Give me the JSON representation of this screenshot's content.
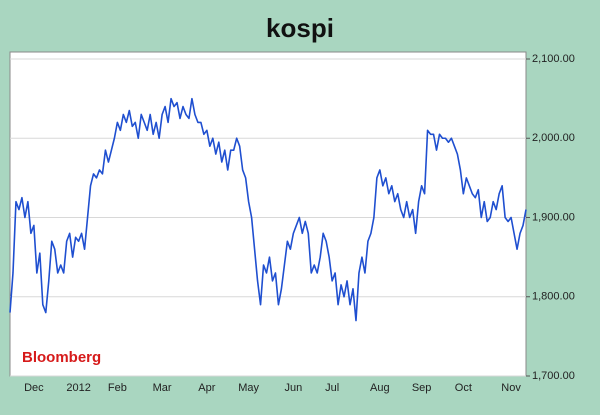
{
  "chart_data": {
    "type": "line",
    "title": "kospi",
    "source": "Bloomberg",
    "color": "#1f4fd0",
    "grid": true,
    "y_axis_side": "right",
    "xlim": [
      0,
      173
    ],
    "xticks": [
      {
        "value": 8,
        "label": "Dec"
      },
      {
        "value": 23,
        "label": "2012"
      },
      {
        "value": 36,
        "label": "Feb"
      },
      {
        "value": 51,
        "label": "Mar"
      },
      {
        "value": 66,
        "label": "Apr"
      },
      {
        "value": 80,
        "label": "May"
      },
      {
        "value": 95,
        "label": "Jun"
      },
      {
        "value": 108,
        "label": "Jul"
      },
      {
        "value": 124,
        "label": "Aug"
      },
      {
        "value": 138,
        "label": "Sep"
      },
      {
        "value": 152,
        "label": "Oct"
      },
      {
        "value": 168,
        "label": "Nov"
      }
    ],
    "ylim": [
      1700,
      2100
    ],
    "yticks": [
      {
        "value": 1700,
        "label": "1,700.00"
      },
      {
        "value": 1800,
        "label": "1,800.00"
      },
      {
        "value": 1900,
        "label": "1,900.00"
      },
      {
        "value": 2000,
        "label": "2,000.00"
      },
      {
        "value": 2100,
        "label": "2,100.00"
      }
    ],
    "values": [
      1780,
      1830,
      1920,
      1910,
      1925,
      1900,
      1920,
      1880,
      1890,
      1830,
      1855,
      1790,
      1780,
      1820,
      1870,
      1860,
      1830,
      1840,
      1830,
      1870,
      1880,
      1850,
      1875,
      1870,
      1880,
      1860,
      1900,
      1940,
      1955,
      1950,
      1960,
      1955,
      1985,
      1970,
      1985,
      2000,
      2020,
      2010,
      2030,
      2020,
      2035,
      2015,
      2020,
      2000,
      2030,
      2020,
      2010,
      2030,
      2005,
      2020,
      2000,
      2030,
      2040,
      2020,
      2050,
      2040,
      2045,
      2025,
      2040,
      2030,
      2025,
      2050,
      2030,
      2020,
      2020,
      2005,
      2010,
      1990,
      2000,
      1980,
      1995,
      1970,
      1985,
      1960,
      1985,
      1985,
      2000,
      1990,
      1960,
      1950,
      1920,
      1900,
      1860,
      1820,
      1790,
      1840,
      1830,
      1850,
      1820,
      1830,
      1790,
      1810,
      1840,
      1870,
      1860,
      1880,
      1890,
      1900,
      1880,
      1895,
      1880,
      1830,
      1840,
      1830,
      1850,
      1880,
      1870,
      1850,
      1820,
      1830,
      1790,
      1815,
      1800,
      1820,
      1790,
      1810,
      1770,
      1830,
      1850,
      1830,
      1870,
      1880,
      1900,
      1950,
      1960,
      1940,
      1950,
      1930,
      1940,
      1920,
      1930,
      1910,
      1900,
      1920,
      1900,
      1910,
      1880,
      1920,
      1940,
      1930,
      2010,
      2005,
      2005,
      1985,
      2005,
      2000,
      2000,
      1995,
      2000,
      1990,
      1980,
      1960,
      1930,
      1950,
      1940,
      1930,
      1925,
      1935,
      1900,
      1920,
      1895,
      1900,
      1920,
      1910,
      1930,
      1940,
      1900,
      1895,
      1900,
      1880,
      1860,
      1880,
      1890,
      1910
    ]
  }
}
